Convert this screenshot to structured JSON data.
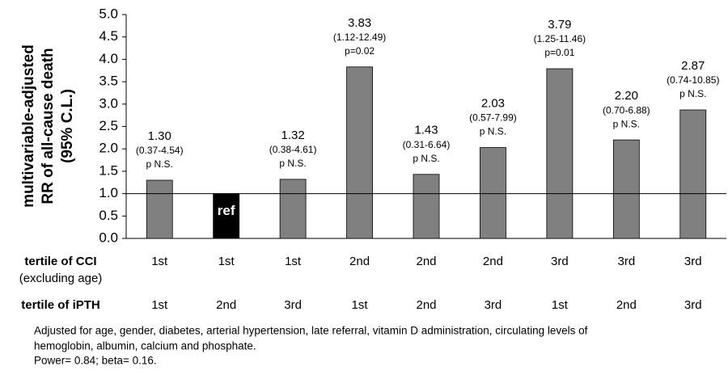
{
  "chart_data": {
    "type": "bar",
    "y_label_lines": [
      "multivariable-adjusted",
      "RR of all-cause death",
      "(95% C.L.)"
    ],
    "values": [
      1.3,
      1,
      1.32,
      3.83,
      1.43,
      2.03,
      3.79,
      2.2,
      2.87
    ],
    "value_labels": [
      "1.30",
      "ref",
      "1.32",
      "3.83",
      "1.43",
      "2.03",
      "3.79",
      "2.20",
      "2.87"
    ],
    "ci_labels": [
      "(0.37-4.54)",
      null,
      "(0.38-4.61)",
      "(1.12-12.49)",
      "(0.31-6.64)",
      "(0.57-7.99)",
      "(1.25-11.46)",
      "(0.70-6.88)",
      "(0.74-10.85)"
    ],
    "p_labels": [
      "p N.S.",
      null,
      "p N.S.",
      "p=0.02",
      "p N.S.",
      "p N.S.",
      "p=0.01",
      "p N.S.",
      "p N.S."
    ],
    "colors": [
      "#808080",
      "#000000",
      "#808080",
      "#808080",
      "#808080",
      "#808080",
      "#808080",
      "#808080",
      "#808080"
    ],
    "reference_line": 1,
    "ylim": [
      0,
      5
    ],
    "yticks": [
      {
        "value": 0,
        "label": "0.0"
      },
      0.5,
      {
        "value": 1,
        "label": "1.0"
      },
      1.5,
      {
        "value": 2,
        "label": "2.0"
      },
      2.5,
      {
        "value": 3,
        "label": "3.0"
      },
      3.5,
      {
        "value": 4,
        "label": "4.0"
      },
      4.5,
      {
        "value": 5,
        "label": "5.0"
      }
    ],
    "row1_label": [
      "tertile of CCI",
      "(excluding age)"
    ],
    "row1": [
      "1st",
      "1st",
      "1st",
      "2nd",
      "2nd",
      "2nd",
      "3rd",
      "3rd",
      "3rd"
    ],
    "row2_label": "tertile of iPTH",
    "row2": [
      "1st",
      "2nd",
      "3rd",
      "1st",
      "2nd",
      "3rd",
      "1st",
      "2nd",
      "3rd"
    ],
    "footnote": [
      "Adjusted for age, gender, diabetes, arterial hypertension, late referral, vitamin D administration, circulating levels of",
      "hemoglobin, albumin, calcium and phosphate.",
      "Power= 0.84; beta= 0.16."
    ]
  }
}
